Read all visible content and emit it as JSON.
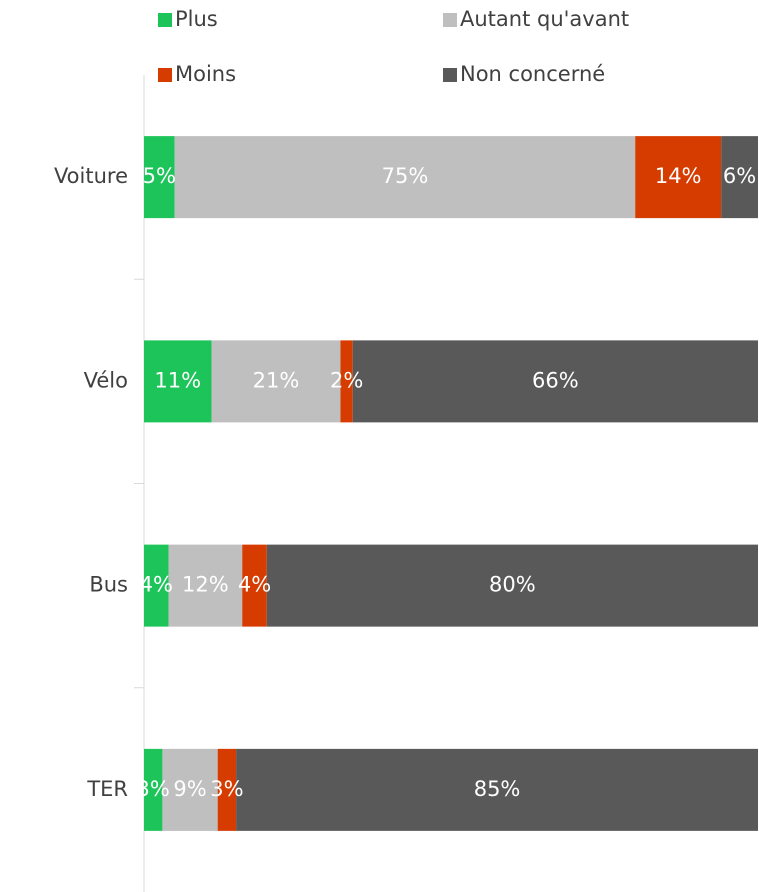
{
  "chart_data": {
    "type": "stacked-bar",
    "orientation": "horizontal",
    "categories": [
      "Voiture",
      "Vélo",
      "Bus",
      "TER"
    ],
    "series": [
      {
        "name": "Plus",
        "color": "#1dc45a",
        "values": [
          5,
          11,
          4,
          3
        ],
        "value_labels": [
          "5%",
          "11%",
          "4%",
          "3%"
        ]
      },
      {
        "name": "Autant qu'avant",
        "color": "#bfbfbf",
        "values": [
          75,
          21,
          12,
          9
        ],
        "value_labels": [
          "75%",
          "21%",
          "12%",
          "9%"
        ]
      },
      {
        "name": "Moins",
        "color": "#d63c00",
        "values": [
          14,
          2,
          4,
          3
        ],
        "value_labels": [
          "14%",
          "2%",
          "4%",
          "3%"
        ]
      },
      {
        "name": "Non concerné",
        "color": "#595959",
        "values": [
          6,
          66,
          80,
          85
        ],
        "value_labels": [
          "6%",
          "66%",
          "80%",
          "85%"
        ]
      }
    ],
    "xlim": [
      0,
      100
    ],
    "legend": "top"
  }
}
